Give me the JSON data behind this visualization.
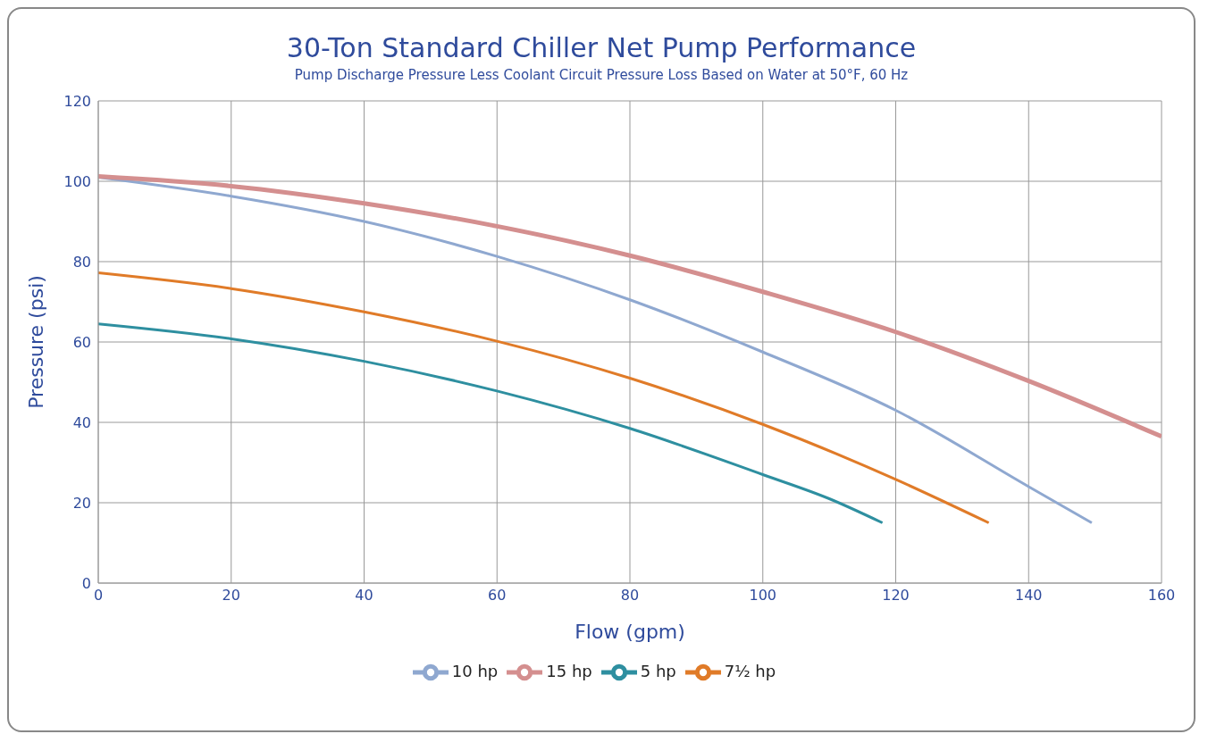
{
  "chart_data": {
    "type": "line",
    "title": "30-Ton Standard Chiller Net Pump Performance",
    "subtitle": "Pump Discharge Pressure Less Coolant Circuit Pressure Loss Based on Water at 50°F, 60 Hz",
    "xlabel": "Flow (gpm)",
    "ylabel": "Pressure (psi)",
    "xlim": [
      0,
      160
    ],
    "xticks": [
      0,
      20,
      40,
      60,
      80,
      100,
      120,
      140,
      160
    ],
    "ylim": [
      0,
      120
    ],
    "yticks": [
      0,
      20,
      40,
      60,
      80,
      100,
      120
    ],
    "grid": true,
    "legend": "bottom",
    "marker": "none",
    "line_style": "solid",
    "series": [
      {
        "name": "5 hp",
        "color": "#2e8fa0",
        "x": [
          0,
          20,
          40,
          60,
          80,
          100,
          110,
          118
        ],
        "values": [
          64.5,
          60.8,
          55.2,
          47.8,
          38.5,
          27,
          21,
          15
        ]
      },
      {
        "name": "7½ hp",
        "color": "#e07b28",
        "x": [
          0,
          20,
          40,
          60,
          80,
          100,
          120,
          134
        ],
        "values": [
          77.2,
          73.3,
          67.5,
          60.2,
          51,
          39.5,
          25.8,
          15
        ]
      },
      {
        "name": "10 hp",
        "color": "#8fa8d0",
        "x": [
          0,
          20,
          40,
          60,
          80,
          100,
          120,
          140,
          149.5
        ],
        "values": [
          101,
          96.3,
          90,
          81.3,
          70.5,
          57.5,
          43,
          24,
          15
        ]
      },
      {
        "name": "15 hp",
        "color": "#d48f8f",
        "x": [
          0,
          20,
          40,
          60,
          80,
          100,
          120,
          140,
          160
        ],
        "values": [
          101.2,
          98.8,
          94.5,
          88.8,
          81.5,
          72.5,
          62.5,
          50.3,
          36.5
        ]
      }
    ]
  }
}
